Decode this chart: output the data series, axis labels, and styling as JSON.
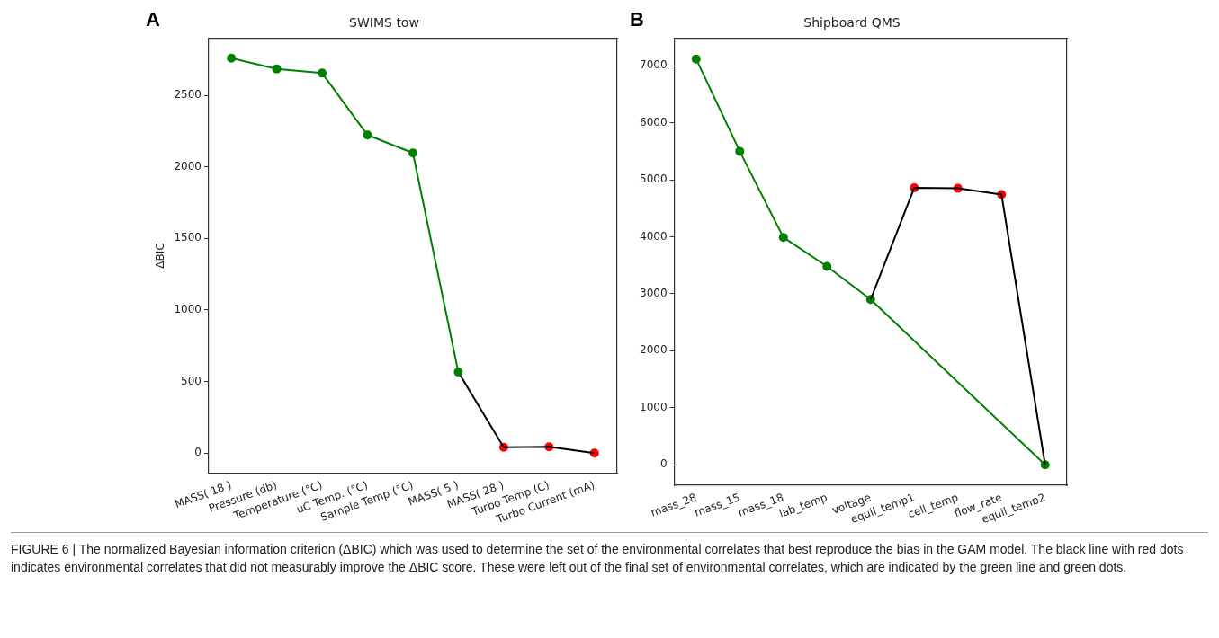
{
  "chart_data": [
    {
      "type": "line",
      "title": "SWIMS tow",
      "ylabel": "ΔBIC",
      "annotations": [
        "A"
      ],
      "categories": [
        "MASS( 18 )",
        "Pressure (db)",
        "Temperature (°C)",
        "uC Temp. (°C)",
        "Sample Temp (°C)",
        "MASS( 5 )",
        "MASS( 28 )",
        "Turbo Temp (C)",
        "Turbo Current (mA)"
      ],
      "series": [
        {
          "type": "line",
          "color": "#008000",
          "marker": "circle",
          "values": [
            2759,
            2684,
            2655,
            2222,
            2097,
            566,
            null,
            null,
            null
          ]
        },
        {
          "type": "line",
          "color": "#000000",
          "marker": "none",
          "values": [
            null,
            null,
            null,
            null,
            null,
            566,
            40,
            44,
            0
          ]
        },
        {
          "type": "scatter",
          "color": "#ff0000",
          "marker": "circle",
          "values": [
            null,
            null,
            null,
            null,
            null,
            null,
            40,
            44,
            0
          ]
        }
      ],
      "ylim": [
        -138,
        2897
      ],
      "yticks": [
        0,
        500,
        1000,
        1500,
        2000,
        2500
      ],
      "grid": false,
      "legend": false
    },
    {
      "type": "line",
      "title": "Shipboard QMS",
      "annotations": [
        "B",
        "FIGURE 6 | The normalized Bayesian information criterion (ΔBIC) which was used to determine the set of the environmental correlates that best reproduce the bias in the GAM model. The black line with red dots indicates environmental correlates that did not measurably improve the ΔBIC score. These were left out of the final set of environmental correlates, which are indicated by the green line and green dots."
      ],
      "categories": [
        "mass_28",
        "mass_15",
        "mass_18",
        "lab_temp",
        "voltage",
        "equil_temp1",
        "cell_temp",
        "flow_rate",
        "equil_temp2"
      ],
      "series": [
        {
          "type": "line",
          "color": "#000000",
          "marker": "none",
          "values": [
            null,
            null,
            null,
            null,
            2900,
            4860,
            4850,
            4740,
            0
          ]
        },
        {
          "type": "scatter",
          "color": "#ff0000",
          "marker": "circle",
          "values": [
            null,
            null,
            null,
            null,
            null,
            4860,
            4850,
            4740,
            null
          ]
        },
        {
          "type": "line",
          "color": "#008000",
          "marker": "circle",
          "values": [
            7120,
            5500,
            3990,
            3480,
            2900,
            null,
            null,
            null,
            0
          ]
        }
      ],
      "ylim": [
        -360,
        7480
      ],
      "yticks": [
        0,
        1000,
        2000,
        3000,
        4000,
        5000,
        6000,
        7000
      ],
      "grid": false,
      "legend": false
    }
  ]
}
